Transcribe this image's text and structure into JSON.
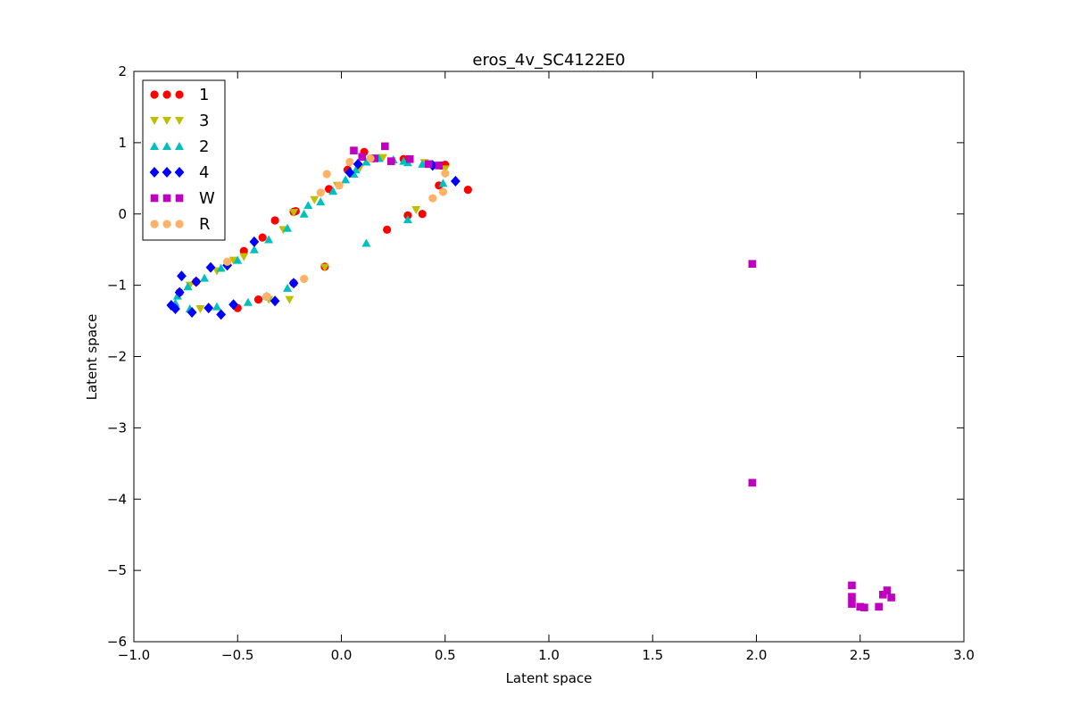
{
  "chart_data": {
    "type": "scatter",
    "title": "eros_4v_SC4122E0",
    "xlabel": "Latent space",
    "ylabel": "Latent space",
    "xlim": [
      -1.0,
      3.0
    ],
    "ylim": [
      -6,
      2
    ],
    "xticks": [
      "−1.0",
      "−0.5",
      "0.0",
      "0.5",
      "1.0",
      "1.5",
      "2.0",
      "2.5",
      "3.0"
    ],
    "xtick_values": [
      -1.0,
      -0.5,
      0.0,
      0.5,
      1.0,
      1.5,
      2.0,
      2.5,
      3.0
    ],
    "yticks": [
      "2",
      "1",
      "0",
      "−1",
      "−2",
      "−3",
      "−4",
      "−5",
      "−6"
    ],
    "ytick_values": [
      2,
      1,
      0,
      -1,
      -2,
      -3,
      -4,
      -5,
      -6
    ],
    "grid": false,
    "legend_position": "top-left",
    "series": [
      {
        "name": "1",
        "marker": "circle",
        "color": "#ff0000",
        "points": [
          [
            0.11,
            0.87
          ],
          [
            0.22,
            -0.22
          ],
          [
            0.32,
            -0.02
          ],
          [
            0.39,
            0.0
          ],
          [
            0.47,
            0.4
          ],
          [
            0.48,
            0.68
          ],
          [
            0.5,
            0.69
          ],
          [
            0.61,
            0.34
          ],
          [
            -0.08,
            -0.74
          ],
          [
            -0.23,
            -0.97
          ],
          [
            -0.23,
            0.03
          ],
          [
            -0.32,
            -0.09
          ],
          [
            -0.5,
            -1.32
          ],
          [
            -0.4,
            -1.2
          ],
          [
            -0.36,
            -1.16
          ],
          [
            -0.47,
            -0.52
          ],
          [
            -0.38,
            -0.33
          ],
          [
            -0.22,
            0.04
          ],
          [
            -0.06,
            0.35
          ],
          [
            0.03,
            0.62
          ],
          [
            0.15,
            0.78
          ],
          [
            0.3,
            0.77
          ],
          [
            -0.78,
            -1.1
          ],
          [
            -0.7,
            -0.95
          ]
        ]
      },
      {
        "name": "3",
        "marker": "triangle-down",
        "color": "#bfbf00",
        "points": [
          [
            -0.08,
            -0.75
          ],
          [
            -0.23,
            0.02
          ],
          [
            0.36,
            0.06
          ],
          [
            -0.47,
            -0.6
          ],
          [
            -0.28,
            -0.22
          ],
          [
            -0.13,
            0.2
          ],
          [
            -0.02,
            0.4
          ],
          [
            0.09,
            0.65
          ],
          [
            0.2,
            0.79
          ],
          [
            0.4,
            0.72
          ],
          [
            -0.68,
            -1.33
          ],
          [
            -0.73,
            -1.0
          ],
          [
            -0.6,
            -0.8
          ],
          [
            -0.52,
            -0.65
          ],
          [
            -0.25,
            -1.2
          ],
          [
            -0.35,
            -1.2
          ],
          [
            0.5,
            0.63
          ]
        ]
      },
      {
        "name": "2",
        "marker": "triangle-up",
        "color": "#00bfbf",
        "points": [
          [
            0.12,
            -0.41
          ],
          [
            0.32,
            -0.08
          ],
          [
            -0.26,
            -1.04
          ],
          [
            -0.36,
            -1.15
          ],
          [
            -0.45,
            -1.24
          ],
          [
            -0.6,
            -1.3
          ],
          [
            -0.73,
            -1.33
          ],
          [
            -0.8,
            -1.25
          ],
          [
            -0.79,
            -1.15
          ],
          [
            -0.74,
            -1.02
          ],
          [
            -0.66,
            -0.9
          ],
          [
            -0.58,
            -0.76
          ],
          [
            -0.5,
            -0.65
          ],
          [
            -0.42,
            -0.5
          ],
          [
            -0.35,
            -0.36
          ],
          [
            -0.26,
            -0.2
          ],
          [
            -0.18,
            0.0
          ],
          [
            -0.1,
            0.17
          ],
          [
            -0.04,
            0.32
          ],
          [
            0.02,
            0.48
          ],
          [
            0.07,
            0.62
          ],
          [
            0.12,
            0.73
          ],
          [
            0.18,
            0.78
          ],
          [
            0.25,
            0.76
          ],
          [
            0.32,
            0.72
          ],
          [
            0.39,
            0.7
          ],
          [
            0.45,
            0.68
          ],
          [
            0.49,
            0.43
          ],
          [
            -0.16,
            0.12
          ],
          [
            0.06,
            0.56
          ],
          [
            0.3,
            0.74
          ]
        ]
      },
      {
        "name": "4",
        "marker": "diamond",
        "color": "#0000ff",
        "points": [
          [
            -0.77,
            -0.87
          ],
          [
            -0.82,
            -1.28
          ],
          [
            -0.8,
            -1.33
          ],
          [
            -0.72,
            -1.38
          ],
          [
            -0.64,
            -1.32
          ],
          [
            -0.58,
            -1.41
          ],
          [
            -0.52,
            -1.27
          ],
          [
            -0.32,
            -1.22
          ],
          [
            -0.23,
            -0.97
          ],
          [
            -0.55,
            -0.72
          ],
          [
            -0.63,
            -0.75
          ],
          [
            -0.7,
            -0.95
          ],
          [
            -0.78,
            -1.1
          ],
          [
            -0.42,
            -0.39
          ],
          [
            0.04,
            0.58
          ],
          [
            0.08,
            0.7
          ],
          [
            0.44,
            0.68
          ],
          [
            0.55,
            0.46
          ]
        ]
      },
      {
        "name": "W",
        "marker": "square",
        "color": "#bf00bf",
        "points": [
          [
            0.06,
            0.89
          ],
          [
            0.21,
            0.95
          ],
          [
            0.1,
            0.8
          ],
          [
            0.16,
            0.78
          ],
          [
            0.24,
            0.74
          ],
          [
            0.33,
            0.77
          ],
          [
            0.42,
            0.7
          ],
          [
            0.47,
            0.68
          ],
          [
            1.98,
            -0.7
          ],
          [
            1.98,
            -3.77
          ],
          [
            2.46,
            -5.21
          ],
          [
            2.46,
            -5.37
          ],
          [
            2.46,
            -5.47
          ],
          [
            2.5,
            -5.51
          ],
          [
            2.52,
            -5.52
          ],
          [
            2.59,
            -5.51
          ],
          [
            2.61,
            -5.34
          ],
          [
            2.63,
            -5.28
          ],
          [
            2.65,
            -5.38
          ]
        ]
      },
      {
        "name": "R",
        "marker": "circle",
        "color": "#ffb266",
        "points": [
          [
            -0.07,
            0.56
          ],
          [
            -0.1,
            0.3
          ],
          [
            -0.18,
            -0.91
          ],
          [
            0.04,
            0.73
          ],
          [
            0.44,
            0.22
          ],
          [
            0.49,
            0.31
          ],
          [
            0.5,
            0.57
          ],
          [
            -0.36,
            -1.16
          ],
          [
            -0.55,
            -0.67
          ],
          [
            -0.01,
            0.4
          ],
          [
            0.14,
            0.78
          ]
        ]
      }
    ]
  }
}
